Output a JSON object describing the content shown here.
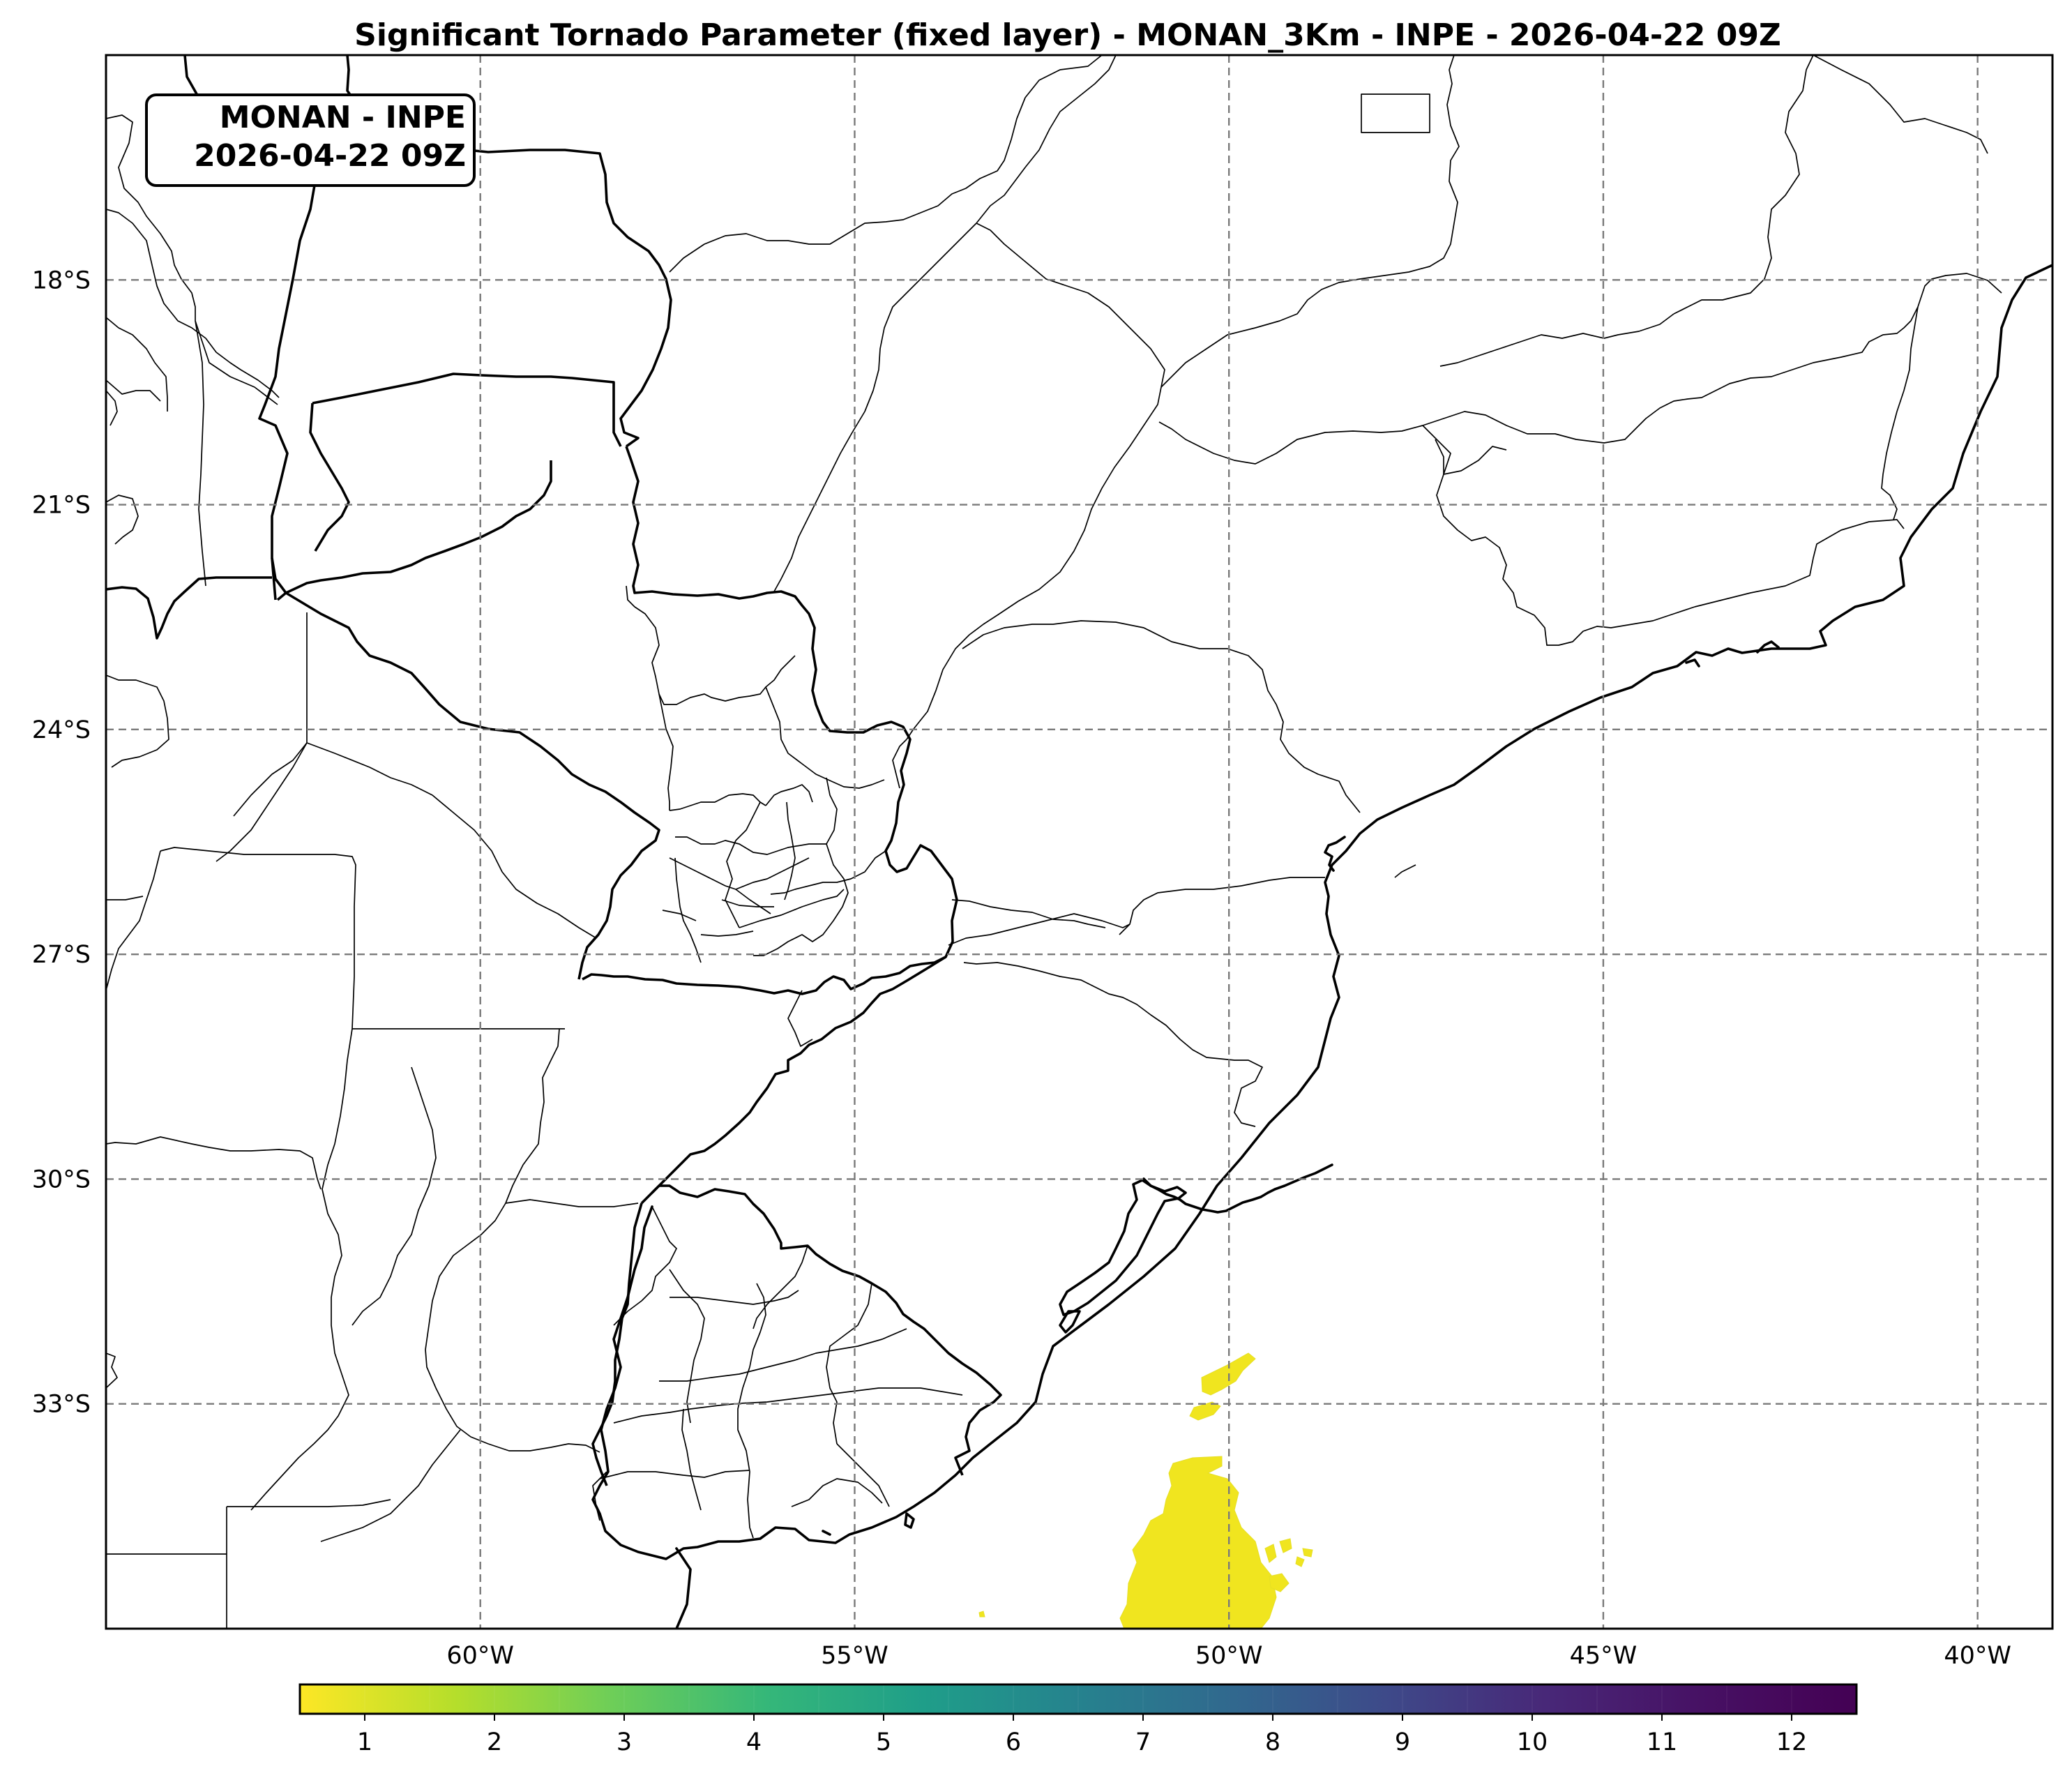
{
  "title": "Significant Tornado Parameter (fixed layer) - MONAN_3Km - INPE - 2026-04-22 09Z",
  "info_box": {
    "line1": "MONAN - INPE",
    "line2": "2026-04-22 09Z"
  },
  "map": {
    "lon_range": [
      -65,
      -39
    ],
    "lat_range": [
      -36,
      -15
    ],
    "lat_ticks": [
      {
        "value": -18,
        "label": "18°S"
      },
      {
        "value": -21,
        "label": "21°S"
      },
      {
        "value": -24,
        "label": "24°S"
      },
      {
        "value": -27,
        "label": "27°S"
      },
      {
        "value": -30,
        "label": "30°S"
      },
      {
        "value": -33,
        "label": "33°S"
      }
    ],
    "lon_ticks": [
      {
        "value": -60,
        "label": "60°W"
      },
      {
        "value": -55,
        "label": "55°W"
      },
      {
        "value": -50,
        "label": "50°W"
      },
      {
        "value": -45,
        "label": "45°W"
      },
      {
        "value": -40,
        "label": "40°W"
      }
    ],
    "gridlines": true
  },
  "colorbar": {
    "colormap": "viridis_r",
    "min": 0.5,
    "max": 12.5,
    "ticks": [
      "1",
      "2",
      "3",
      "4",
      "5",
      "6",
      "7",
      "8",
      "9",
      "10",
      "11",
      "12"
    ],
    "low_color": "#fde725",
    "high_color": "#440154"
  },
  "field_feature": {
    "variable": "Significant Tornado Parameter",
    "region": "offshore south of Rio Grande do Sul",
    "approx_value": 1
  }
}
